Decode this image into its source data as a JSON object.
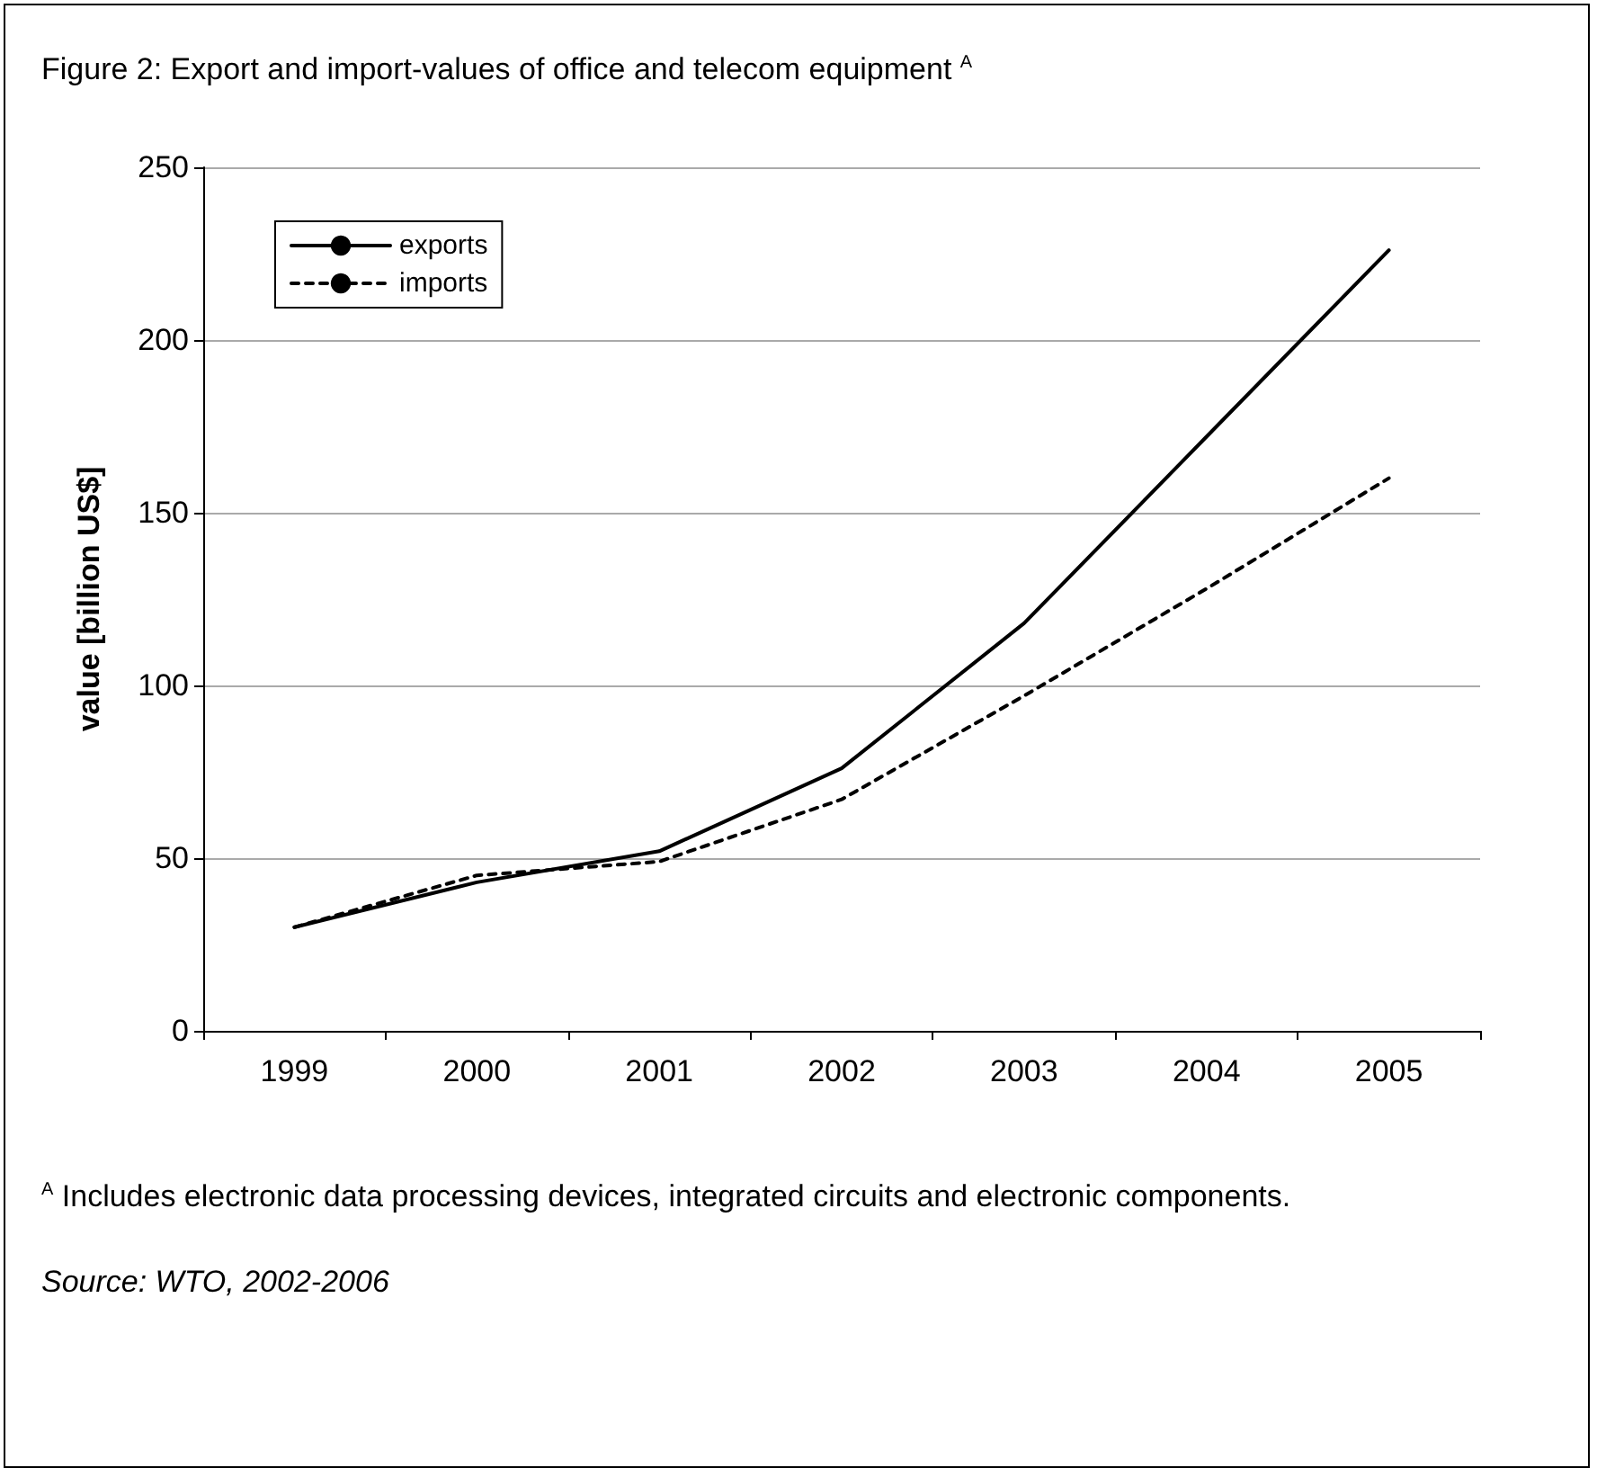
{
  "chart_data": {
    "type": "line",
    "title": "Figure 2: Export and import-values of office and telecom equipment $^{A}$",
    "ylabel": "value [billion US$]",
    "categories": [
      "1999",
      "2000",
      "2001",
      "2002",
      "2003",
      "2004",
      "2005"
    ],
    "series": [
      {
        "name": "exports",
        "color": "#000000",
        "line_style": "solid",
        "values": [
          30,
          43,
          52,
          76,
          118,
          172,
          226
        ]
      },
      {
        "name": "imports",
        "color": "#000000",
        "line_style": "dashed",
        "values": [
          30,
          45,
          49,
          67,
          97,
          128,
          160
        ]
      }
    ],
    "ylim": [
      0,
      250
    ],
    "yticks": [
      0,
      50,
      100,
      150,
      200,
      250
    ],
    "grid": "y",
    "legend": "top left",
    "marker": "none",
    "annotations": [
      "$^{A}$ Includes electronic data processing devices, integrated circuits and electronic components.",
      "Source: WTO, 2002-2006"
    ]
  }
}
